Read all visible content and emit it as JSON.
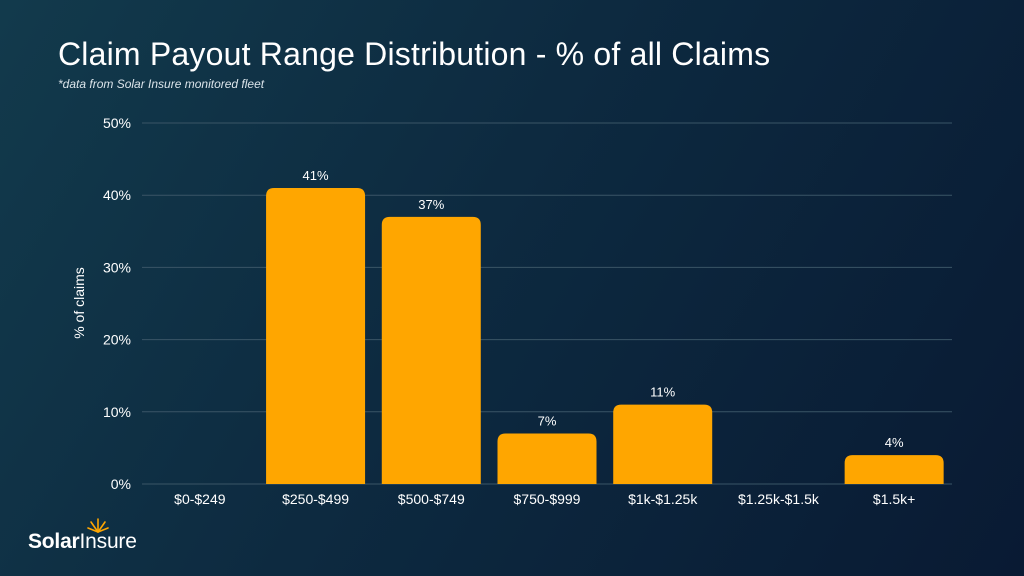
{
  "chart_data": {
    "type": "bar",
    "title": "Claim Payout Range Distribution - % of all Claims",
    "subtitle": "*data from Solar Insure monitored fleet",
    "ylabel": "% of claims",
    "xlabel": "",
    "categories": [
      "$0-$249",
      "$250-$499",
      "$500-$749",
      "$750-$999",
      "$1k-$1.25k",
      "$1.25k-$1.5k",
      "$1.5k+"
    ],
    "values": [
      0,
      41,
      37,
      7,
      11,
      0,
      4
    ],
    "data_labels": [
      "",
      "41%",
      "37%",
      "7%",
      "11%",
      "",
      "4%"
    ],
    "ylim": [
      0,
      50
    ],
    "yticks": [
      0,
      10,
      20,
      30,
      40,
      50
    ],
    "ytick_labels": [
      "0%",
      "10%",
      "20%",
      "30%",
      "40%",
      "50%"
    ],
    "grid": true,
    "legend": "none",
    "bar_color": "#ffa600",
    "grid_color": "#3a5566"
  },
  "logo": {
    "text": "SolarInsure"
  }
}
